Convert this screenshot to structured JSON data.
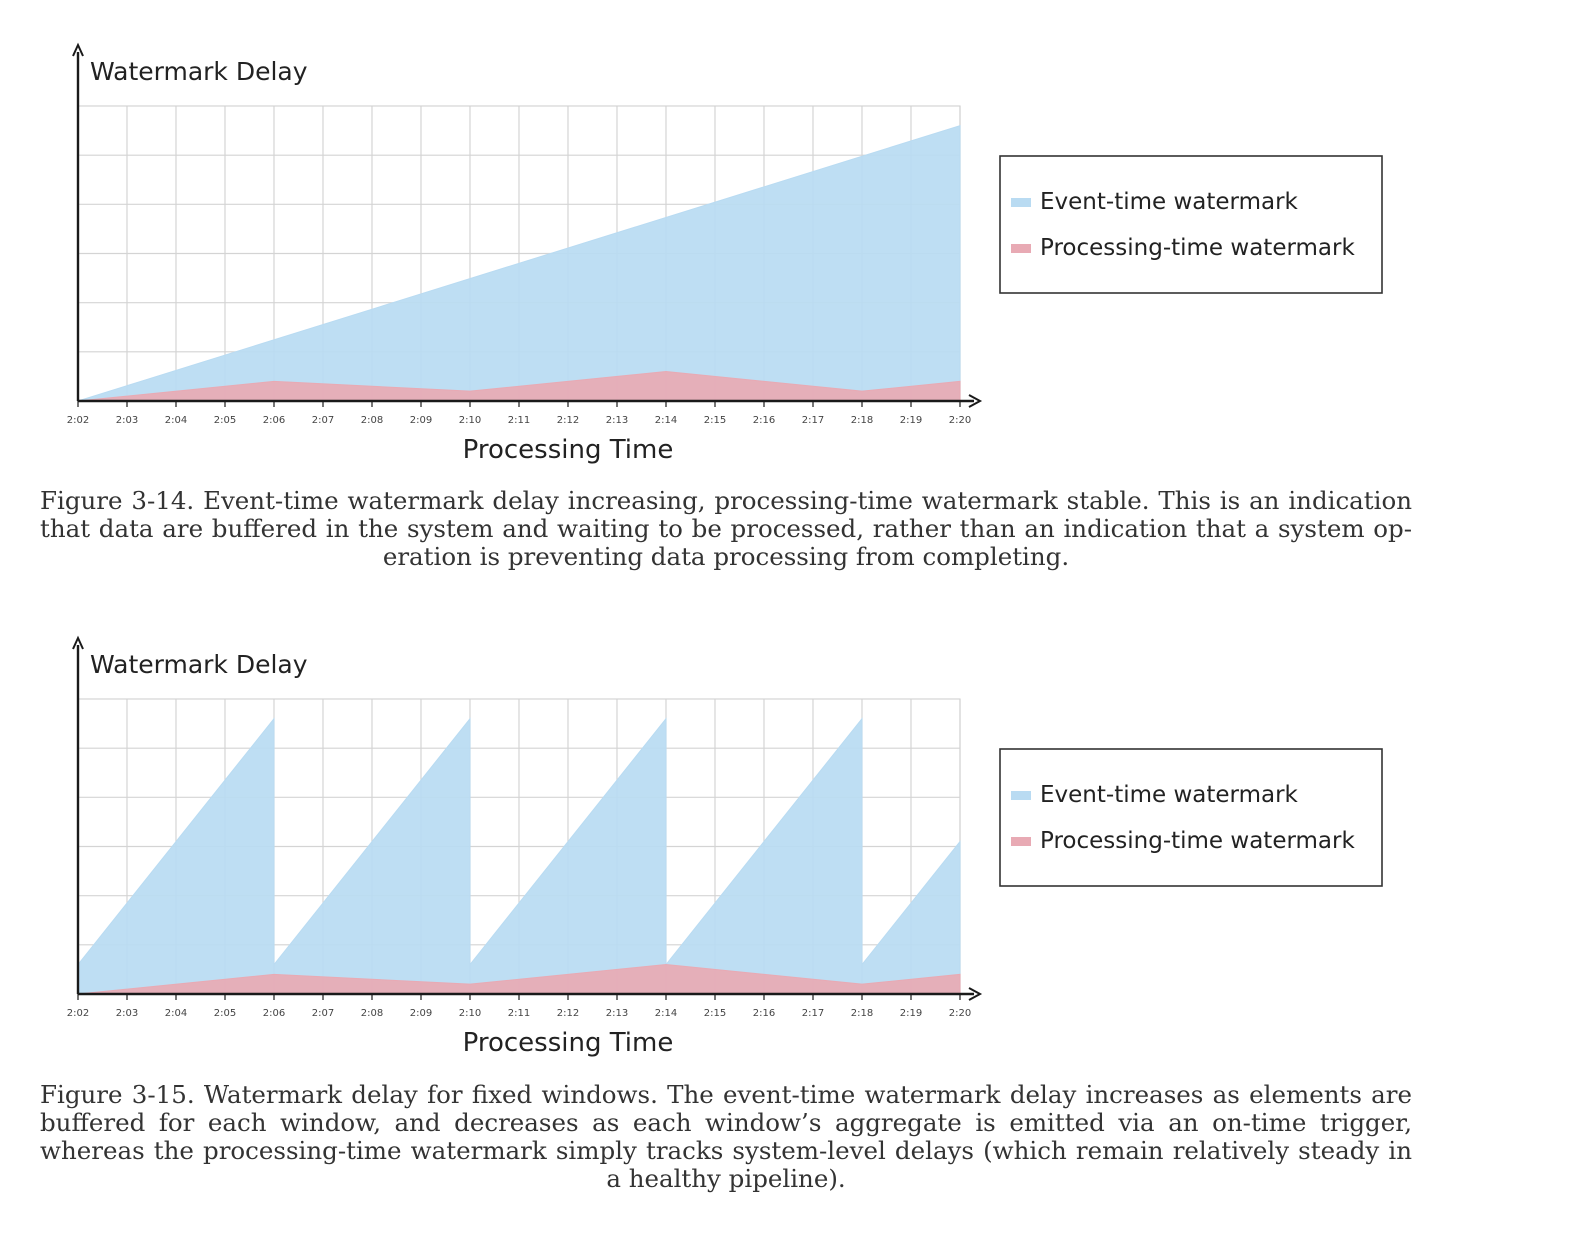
{
  "chart_data": [
    {
      "type": "area",
      "ylabel": "Watermark Delay",
      "xlabel": "Processing Time",
      "categories": [
        "2:02",
        "2:03",
        "2:04",
        "2:05",
        "2:06",
        "2:07",
        "2:08",
        "2:09",
        "2:10",
        "2:11",
        "2:12",
        "2:13",
        "2:14",
        "2:15",
        "2:16",
        "2:17",
        "2:18",
        "2:19",
        "2:20"
      ],
      "ylim": [
        0,
        6
      ],
      "grid": true,
      "legend_position": "right",
      "series": [
        {
          "name": "Event-time watermark",
          "color": "#b9dbf2",
          "points": [
            [
              "2:02",
              0
            ],
            [
              "2:20",
              5.6
            ]
          ]
        },
        {
          "name": "Processing-time watermark",
          "color": "#e8aab4",
          "points": [
            [
              "2:02",
              0
            ],
            [
              "2:06",
              0.4
            ],
            [
              "2:10",
              0.2
            ],
            [
              "2:14",
              0.6
            ],
            [
              "2:18",
              0.2
            ],
            [
              "2:20",
              0.4
            ]
          ]
        }
      ],
      "caption": "Figure 3-14. Event-time watermark delay increasing, processing-time watermark stable. This is an indication that data are buffered in the system and waiting to be processed, rather than an indication that a system op-eration is preventing data processing from completing."
    },
    {
      "type": "area",
      "ylabel": "Watermark Delay",
      "xlabel": "Processing Time",
      "categories": [
        "2:02",
        "2:03",
        "2:04",
        "2:05",
        "2:06",
        "2:07",
        "2:08",
        "2:09",
        "2:10",
        "2:11",
        "2:12",
        "2:13",
        "2:14",
        "2:15",
        "2:16",
        "2:17",
        "2:18",
        "2:19",
        "2:20"
      ],
      "ylim": [
        0,
        6
      ],
      "grid": true,
      "legend_position": "right",
      "series": [
        {
          "name": "Event-time watermark",
          "color": "#b9dbf2",
          "points": [
            [
              "2:02",
              0.6
            ],
            [
              "2:06",
              5.6
            ],
            [
              "2:06",
              0.6
            ],
            [
              "2:10",
              5.6
            ],
            [
              "2:10",
              0.6
            ],
            [
              "2:14",
              5.6
            ],
            [
              "2:14",
              0.6
            ],
            [
              "2:18",
              5.6
            ],
            [
              "2:18",
              0.6
            ],
            [
              "2:20",
              3.1
            ]
          ]
        },
        {
          "name": "Processing-time watermark",
          "color": "#e8aab4",
          "points": [
            [
              "2:02",
              0
            ],
            [
              "2:06",
              0.4
            ],
            [
              "2:10",
              0.2
            ],
            [
              "2:14",
              0.6
            ],
            [
              "2:18",
              0.2
            ],
            [
              "2:20",
              0.4
            ]
          ]
        }
      ],
      "caption": "Figure 3-15. Watermark delay for fixed windows. The event-time watermark delay increases as elements are buffered for each window, and decreases as each window’s aggregate is emitted via an on-time trigger, whereas the processing-time watermark simply tracks system-level delays (which remain relatively steady in a healthy pipeline)."
    }
  ]
}
